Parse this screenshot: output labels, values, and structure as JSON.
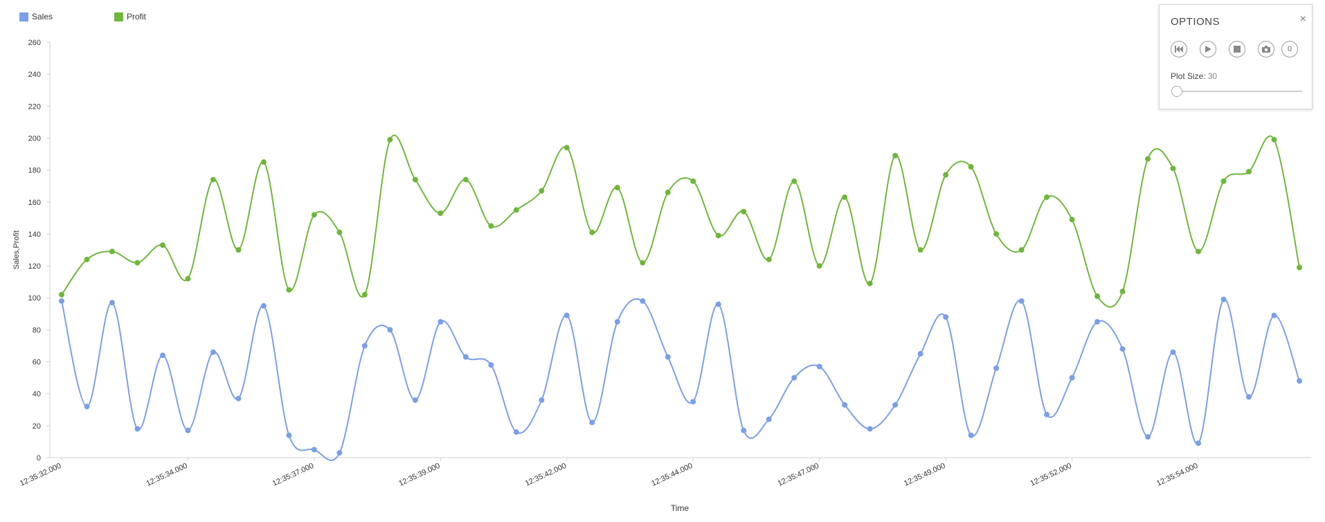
{
  "legend": [
    {
      "name": "Sales",
      "color": "#7b9fe6"
    },
    {
      "name": "Profit",
      "color": "#6fb63c"
    }
  ],
  "options": {
    "title": "OPTIONS",
    "close_icon": "×",
    "buttons": [
      "skip-back-icon",
      "play-icon",
      "stop-icon",
      "camera-icon"
    ],
    "counter": "0",
    "plot_size_label": "Plot Size:",
    "plot_size_value": "30"
  },
  "chart_data": {
    "type": "line",
    "xlabel": "Time",
    "ylabel": "Sales,Profit",
    "ylim": [
      0,
      260
    ],
    "y_ticks": [
      0,
      20,
      40,
      60,
      80,
      100,
      120,
      140,
      160,
      180,
      200,
      220,
      240,
      260
    ],
    "x_tick_labels": [
      "12:35:32.000",
      "12:35:34.000",
      "12:35:37.000",
      "12:35:39.000",
      "12:35:42.000",
      "12:35:44.000",
      "12:35:47.000",
      "12:35:49.000",
      "12:35:52.000",
      "12:35:54.000"
    ],
    "x_tick_positions": [
      0,
      5,
      10,
      15,
      20,
      25,
      30,
      35,
      40,
      45
    ],
    "point_count": 50,
    "grid": false,
    "legend_position": "top-left",
    "series": [
      {
        "name": "Sales",
        "color": "#7b9fe6",
        "values": [
          98,
          32,
          97,
          18,
          64,
          17,
          66,
          37,
          95,
          14,
          5,
          3,
          70,
          80,
          36,
          85,
          63,
          58,
          16,
          36,
          89,
          22,
          85,
          98,
          63,
          35,
          96,
          17,
          24,
          50,
          57,
          33,
          18,
          33,
          65,
          88,
          14,
          56,
          98,
          27,
          50,
          85,
          68,
          13,
          66,
          9,
          99,
          38,
          89,
          48
        ]
      },
      {
        "name": "Profit",
        "color": "#6fb63c",
        "values": [
          102,
          124,
          129,
          122,
          133,
          112,
          174,
          130,
          185,
          105,
          152,
          141,
          102,
          199,
          174,
          153,
          174,
          145,
          155,
          167,
          194,
          141,
          169,
          122,
          166,
          173,
          139,
          154,
          124,
          173,
          120,
          163,
          109,
          189,
          130,
          177,
          182,
          140,
          130,
          163,
          149,
          101,
          104,
          187,
          181,
          129,
          173,
          179,
          199,
          119
        ]
      }
    ]
  }
}
